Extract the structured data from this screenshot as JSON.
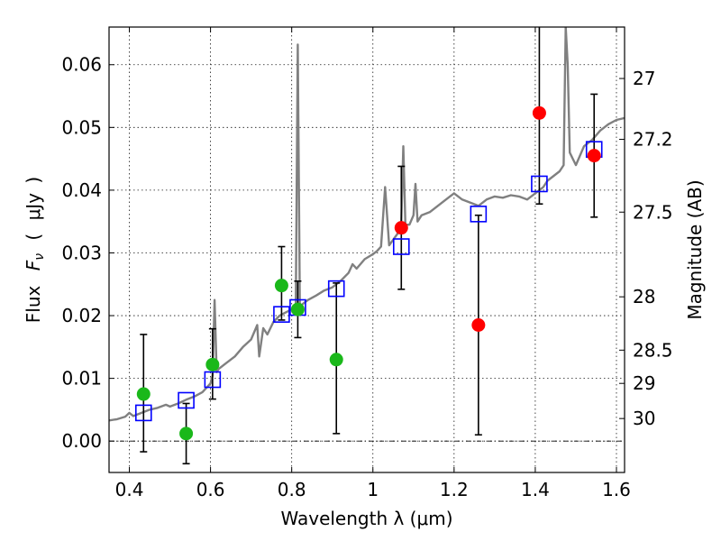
{
  "chart_data": {
    "type": "scatter",
    "title": "",
    "xlabel": "Wavelength  λ (μm)",
    "ylabel": "Flux  F_ν  ( μJy )",
    "ylabel_parts": {
      "flux": "Flux",
      "symbol_main": "F",
      "symbol_sub": "ν",
      "paren_open": "(",
      "unit": "μJy",
      "paren_close": ")"
    },
    "y2label": "Magnitude (AB)",
    "xlim": [
      0.35,
      1.62
    ],
    "ylim": [
      -0.005,
      0.066
    ],
    "xticks": [
      0.4,
      0.6,
      0.8,
      1.0,
      1.2,
      1.4,
      1.6
    ],
    "xtick_labels": [
      "0.4",
      "0.6",
      "0.8",
      "1",
      "1.2",
      "1.4",
      "1.6"
    ],
    "yticks": [
      0.0,
      0.01,
      0.02,
      0.03,
      0.04,
      0.05,
      0.06
    ],
    "ytick_labels": [
      "0.00",
      "0.01",
      "0.02",
      "0.03",
      "0.04",
      "0.05",
      "0.06"
    ],
    "y2ticks": [
      {
        "label": "27",
        "flux": 0.0578
      },
      {
        "label": "27.2",
        "flux": 0.0481
      },
      {
        "label": "27.5",
        "flux": 0.0365
      },
      {
        "label": "28",
        "flux": 0.023
      },
      {
        "label": "28.5",
        "flux": 0.0145
      },
      {
        "label": "29",
        "flux": 0.0092
      },
      {
        "label": "30",
        "flux": 0.0036
      }
    ],
    "grid": true,
    "colors": {
      "spectrum": "#808080",
      "model": "#0000ff",
      "green": "#1ab81a",
      "red": "#ff0000",
      "errorbar": "#000000",
      "zero_line": "#000000"
    },
    "series": [
      {
        "name": "model spectrum",
        "kind": "line",
        "points": [
          [
            0.35,
            0.0033
          ],
          [
            0.37,
            0.0035
          ],
          [
            0.39,
            0.0039
          ],
          [
            0.4,
            0.0045
          ],
          [
            0.41,
            0.004
          ],
          [
            0.43,
            0.0045
          ],
          [
            0.45,
            0.005
          ],
          [
            0.47,
            0.0053
          ],
          [
            0.49,
            0.0058
          ],
          [
            0.5,
            0.0055
          ],
          [
            0.52,
            0.006
          ],
          [
            0.54,
            0.0066
          ],
          [
            0.56,
            0.0071
          ],
          [
            0.58,
            0.0078
          ],
          [
            0.59,
            0.0085
          ],
          [
            0.6,
            0.0092
          ],
          [
            0.605,
            0.0105
          ],
          [
            0.61,
            0.0225
          ],
          [
            0.615,
            0.011
          ],
          [
            0.62,
            0.0115
          ],
          [
            0.64,
            0.0125
          ],
          [
            0.66,
            0.0135
          ],
          [
            0.68,
            0.015
          ],
          [
            0.7,
            0.0162
          ],
          [
            0.715,
            0.0185
          ],
          [
            0.72,
            0.0135
          ],
          [
            0.73,
            0.018
          ],
          [
            0.74,
            0.017
          ],
          [
            0.755,
            0.019
          ],
          [
            0.77,
            0.02
          ],
          [
            0.785,
            0.0205
          ],
          [
            0.8,
            0.021
          ],
          [
            0.81,
            0.0215
          ],
          [
            0.815,
            0.0632
          ],
          [
            0.82,
            0.0215
          ],
          [
            0.84,
            0.0225
          ],
          [
            0.86,
            0.0232
          ],
          [
            0.88,
            0.024
          ],
          [
            0.9,
            0.0245
          ],
          [
            0.92,
            0.0255
          ],
          [
            0.94,
            0.0268
          ],
          [
            0.95,
            0.0282
          ],
          [
            0.96,
            0.0275
          ],
          [
            0.98,
            0.029
          ],
          [
            1.0,
            0.0298
          ],
          [
            1.01,
            0.0303
          ],
          [
            1.02,
            0.031
          ],
          [
            1.03,
            0.0405
          ],
          [
            1.04,
            0.0312
          ],
          [
            1.06,
            0.033
          ],
          [
            1.07,
            0.035
          ],
          [
            1.075,
            0.047
          ],
          [
            1.08,
            0.0345
          ],
          [
            1.09,
            0.0345
          ],
          [
            1.1,
            0.036
          ],
          [
            1.105,
            0.041
          ],
          [
            1.11,
            0.035
          ],
          [
            1.12,
            0.036
          ],
          [
            1.14,
            0.0365
          ],
          [
            1.16,
            0.0375
          ],
          [
            1.18,
            0.0385
          ],
          [
            1.2,
            0.0395
          ],
          [
            1.22,
            0.0385
          ],
          [
            1.24,
            0.038
          ],
          [
            1.26,
            0.0375
          ],
          [
            1.28,
            0.0385
          ],
          [
            1.3,
            0.039
          ],
          [
            1.32,
            0.0388
          ],
          [
            1.34,
            0.0392
          ],
          [
            1.36,
            0.039
          ],
          [
            1.38,
            0.0385
          ],
          [
            1.4,
            0.0395
          ],
          [
            1.42,
            0.0405
          ],
          [
            1.43,
            0.0415
          ],
          [
            1.44,
            0.042
          ],
          [
            1.46,
            0.043
          ],
          [
            1.47,
            0.044
          ],
          [
            1.475,
            0.066
          ],
          [
            1.48,
            0.06
          ],
          [
            1.485,
            0.046
          ],
          [
            1.5,
            0.044
          ],
          [
            1.52,
            0.047
          ],
          [
            1.54,
            0.048
          ],
          [
            1.56,
            0.0495
          ],
          [
            1.58,
            0.0505
          ],
          [
            1.6,
            0.0512
          ],
          [
            1.62,
            0.0515
          ]
        ]
      },
      {
        "name": "model photometry",
        "kind": "open-square",
        "points": [
          [
            0.435,
            0.0045
          ],
          [
            0.54,
            0.0065
          ],
          [
            0.605,
            0.0098
          ],
          [
            0.775,
            0.0202
          ],
          [
            0.815,
            0.0213
          ],
          [
            0.91,
            0.0243
          ],
          [
            1.07,
            0.031
          ],
          [
            1.26,
            0.0362
          ],
          [
            1.41,
            0.041
          ],
          [
            1.545,
            0.0465
          ]
        ]
      },
      {
        "name": "observed photometry (green)",
        "kind": "filled-circle",
        "points": [
          {
            "x": 0.435,
            "y": 0.0075,
            "yerr": [
              0.0092,
              0.0095
            ]
          },
          {
            "x": 0.54,
            "y": 0.0012,
            "yerr": [
              0.0048,
              0.0048
            ]
          },
          {
            "x": 0.605,
            "y": 0.0122,
            "yerr": [
              0.0055,
              0.0057
            ]
          },
          {
            "x": 0.775,
            "y": 0.0248,
            "yerr": [
              0.0055,
              0.0062
            ]
          },
          {
            "x": 0.815,
            "y": 0.021,
            "yerr": [
              0.0045,
              0.0045
            ]
          },
          {
            "x": 0.91,
            "y": 0.013,
            "yerr": [
              0.0118,
              0.0122
            ]
          }
        ]
      },
      {
        "name": "observed photometry (red)",
        "kind": "filled-circle",
        "points": [
          {
            "x": 1.07,
            "y": 0.034,
            "yerr": [
              0.0098,
              0.0098
            ]
          },
          {
            "x": 1.26,
            "y": 0.0185,
            "yerr": [
              0.0175,
              0.0175
            ]
          },
          {
            "x": 1.41,
            "y": 0.0523,
            "yerr": [
              0.0145,
              0.0145
            ]
          },
          {
            "x": 1.545,
            "y": 0.0455,
            "yerr": [
              0.0098,
              0.0098
            ]
          }
        ]
      }
    ]
  }
}
